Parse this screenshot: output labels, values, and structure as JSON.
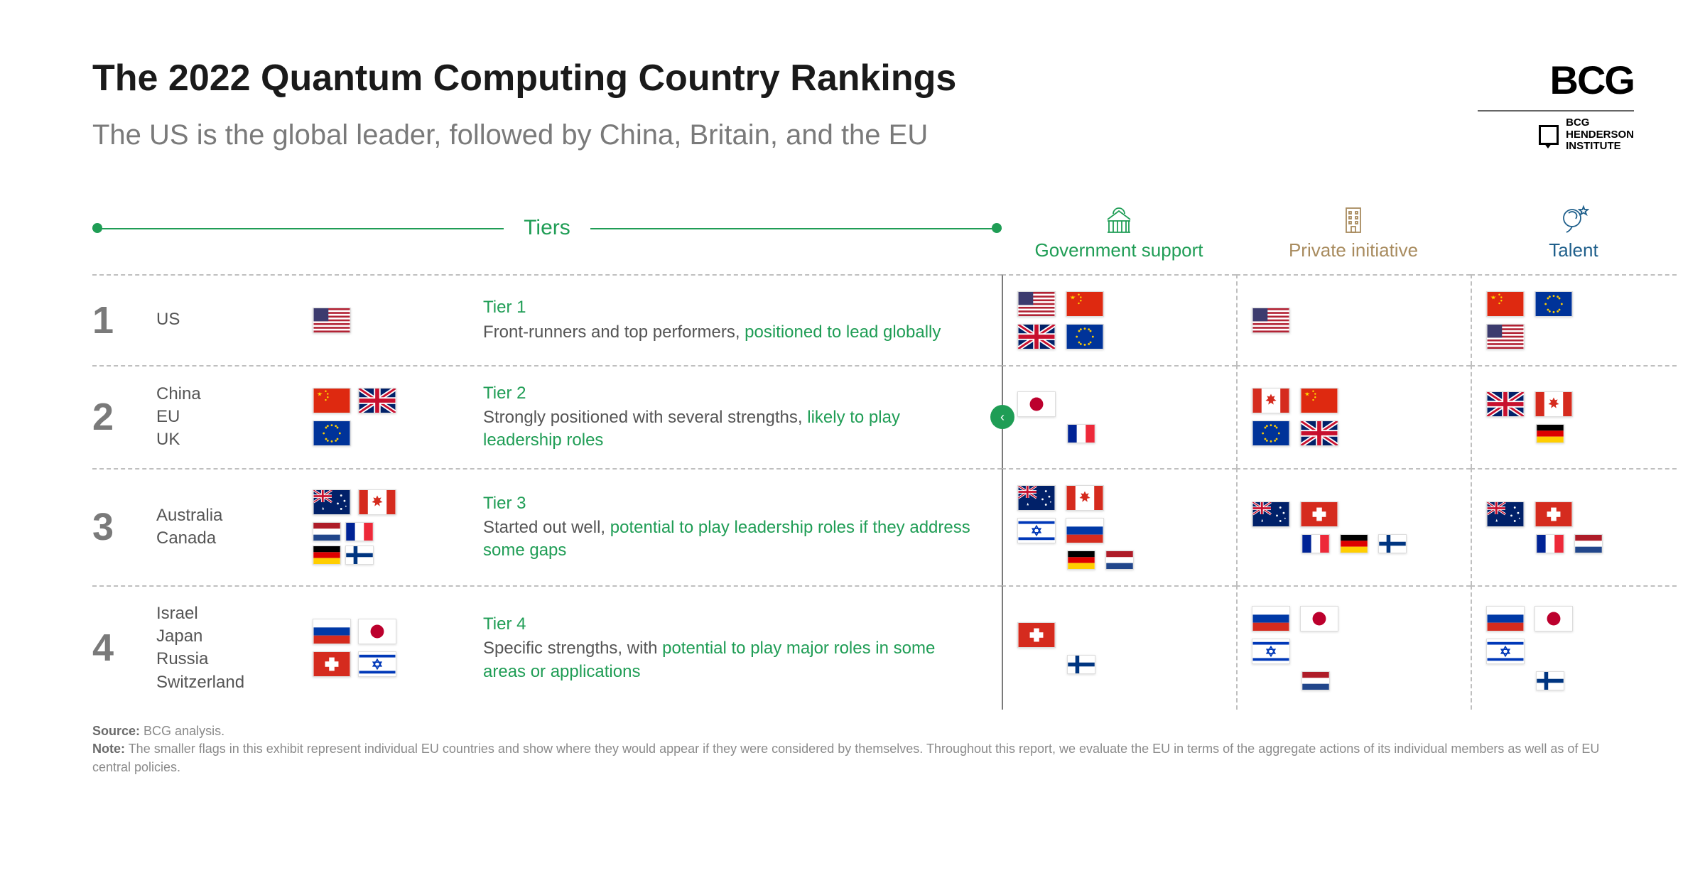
{
  "title": "The 2022 Quantum Computing Country Rankings",
  "subtitle": "The US is the global leader, followed by China, Britain, and the EU",
  "logo": {
    "main": "BCG",
    "sub1": "BCG",
    "sub2": "HENDERSON",
    "sub3": "INSTITUTE"
  },
  "headers": {
    "tiers": "Tiers",
    "gov": "Government support",
    "priv": "Private initiative",
    "talent": "Talent"
  },
  "colors": {
    "green": "#1f9d55",
    "brown": "#a88b5e",
    "blue": "#1f5f8b",
    "gray": "#7a7a7a",
    "dash": "#bfbfbf"
  },
  "tiers": [
    {
      "num": "1",
      "countries": "US",
      "name": "Tier 1",
      "desc_plain": "Front-runners and top performers, ",
      "desc_hl": "positioned to lead globally",
      "flags_main": [
        "us"
      ],
      "gov": [
        [
          "us",
          "cn"
        ],
        [
          "uk",
          "eu"
        ]
      ],
      "priv": [
        [
          "us"
        ]
      ],
      "talent": [
        [
          "cn",
          "eu"
        ],
        [
          "us"
        ]
      ]
    },
    {
      "num": "2",
      "countries": "China\nEU\nUK",
      "name": "Tier 2",
      "desc_plain": "Strongly positioned with several strengths, ",
      "desc_hl": "likely to play leadership roles",
      "flags_main": [
        "cn",
        "uk",
        "eu"
      ],
      "gov": [
        [
          "jp"
        ]
      ],
      "gov_sm": [
        "fr"
      ],
      "priv": [
        [
          "ca",
          "cn"
        ],
        [
          "eu",
          "uk"
        ]
      ],
      "talent": [
        [
          "uk",
          "ca"
        ]
      ],
      "talent_sm": [
        "de"
      ]
    },
    {
      "num": "3",
      "countries": "Australia\nCanada",
      "name": "Tier 3",
      "desc_plain": "Started out well, ",
      "desc_hl": "potential to play leadership roles if they address some gaps",
      "flags_main": [
        "au",
        "ca"
      ],
      "flags_sm": [
        "nl",
        "fr",
        "de",
        "fi"
      ],
      "gov": [
        [
          "au",
          "ca"
        ],
        [
          "il",
          "ru"
        ]
      ],
      "gov_sm": [
        "de",
        "nl"
      ],
      "priv": [
        [
          "au",
          "ch"
        ]
      ],
      "priv_sm": [
        "fr",
        "de",
        "fi"
      ],
      "talent": [
        [
          "au",
          "ch"
        ]
      ],
      "talent_sm": [
        "fr",
        "nl"
      ]
    },
    {
      "num": "4",
      "countries": "Israel\nJapan\nRussia\nSwitzerland",
      "name": "Tier 4",
      "desc_plain": "Specific strengths, with ",
      "desc_hl": "potential to play major roles in some areas or applications",
      "flags_main": [
        "ru",
        "jp",
        "ch",
        "il"
      ],
      "gov": [
        [
          "ch"
        ]
      ],
      "gov_sm": [
        "fi"
      ],
      "priv": [
        [
          "ru",
          "jp"
        ],
        [
          "il"
        ]
      ],
      "priv_sm": [
        "nl"
      ],
      "talent": [
        [
          "ru",
          "jp"
        ],
        [
          "il"
        ]
      ],
      "talent_sm": [
        "fi"
      ]
    }
  ],
  "source_label": "Source:",
  "source": "BCG analysis.",
  "note_label": "Note:",
  "note": "The smaller flags in this exhibit represent individual EU countries and show where they would appear if they were considered by themselves. Throughout this report, we evaluate the EU in terms of the aggregate actions of its individual members as well as of EU central policies."
}
